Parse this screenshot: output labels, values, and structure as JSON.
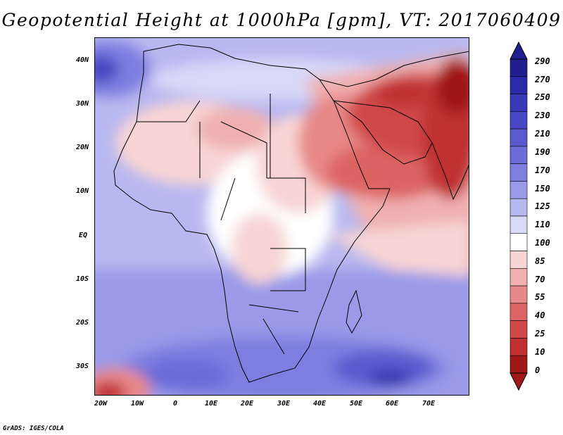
{
  "title": "Geopotential Height at 1000hPa [gpm], VT: 2017060409",
  "footer": "GrADS: IGES/COLA",
  "map": {
    "region": "Africa",
    "lon_range": [
      -24,
      80
    ],
    "lat_range": [
      -36,
      44
    ],
    "lat_labels": [
      "40N",
      "30N",
      "20N",
      "10N",
      "EQ",
      "10S",
      "20S",
      "30S"
    ],
    "lon_labels": [
      "20W",
      "10W",
      "0",
      "10E",
      "20E",
      "30E",
      "40E",
      "50E",
      "60E",
      "70E"
    ]
  },
  "colorbar": {
    "levels": [
      "290",
      "270",
      "250",
      "230",
      "210",
      "190",
      "170",
      "150",
      "125",
      "110",
      "100",
      "85",
      "70",
      "55",
      "40",
      "25",
      "10",
      "0"
    ],
    "colors": [
      "#1f1f8f",
      "#2a2aa8",
      "#3838b8",
      "#4848c4",
      "#5a5ace",
      "#6c6cd8",
      "#7e7ee0",
      "#9a9ae8",
      "#b8b8f0",
      "#d8d8f8",
      "#ffffff",
      "#f8d4d4",
      "#f0b0b0",
      "#e88888",
      "#dc6464",
      "#d04848",
      "#c03030",
      "#a01818"
    ]
  }
}
